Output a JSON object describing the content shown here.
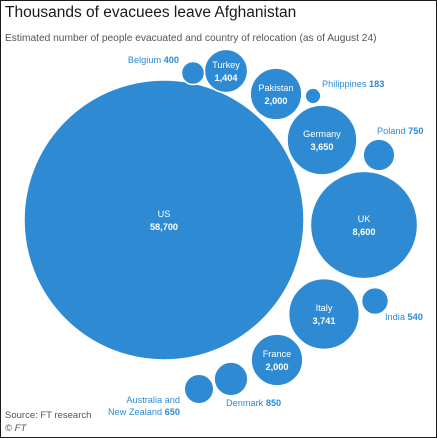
{
  "title": "Thousands of evacuees leave Afghanistan",
  "subtitle": "Estimated number of people evacuated and country of relocation (as of August 24)",
  "source": "Source: FT research",
  "credit": "© FT",
  "colors": {
    "bubble": "#2e8bd3",
    "inside_text": "#ffffff",
    "outside_text": "#2e8bd3",
    "title": "#1a1a1a"
  },
  "chart_data": {
    "type": "bubble",
    "title": "Thousands of evacuees leave Afghanistan",
    "subtitle": "Estimated number of people evacuated and country of relocation (as of August 24)",
    "unit": "people evacuated",
    "points": [
      {
        "country": "US",
        "value": 58700,
        "value_label": "58,700"
      },
      {
        "country": "UK",
        "value": 8600,
        "value_label": "8,600"
      },
      {
        "country": "Italy",
        "value": 3741,
        "value_label": "3,741"
      },
      {
        "country": "Germany",
        "value": 3650,
        "value_label": "3,650"
      },
      {
        "country": "Pakistan",
        "value": 2000,
        "value_label": "2,000"
      },
      {
        "country": "France",
        "value": 2000,
        "value_label": "2,000"
      },
      {
        "country": "Turkey",
        "value": 1404,
        "value_label": "1,404"
      },
      {
        "country": "Denmark",
        "value": 850,
        "value_label": "850"
      },
      {
        "country": "Poland",
        "value": 750,
        "value_label": "750"
      },
      {
        "country": "Australia and New Zealand",
        "value": 650,
        "value_label": "650"
      },
      {
        "country": "India",
        "value": 540,
        "value_label": "540"
      },
      {
        "country": "Belgium",
        "value": 400,
        "value_label": "400"
      },
      {
        "country": "Philippines",
        "value": 183,
        "value_label": "183"
      }
    ]
  }
}
